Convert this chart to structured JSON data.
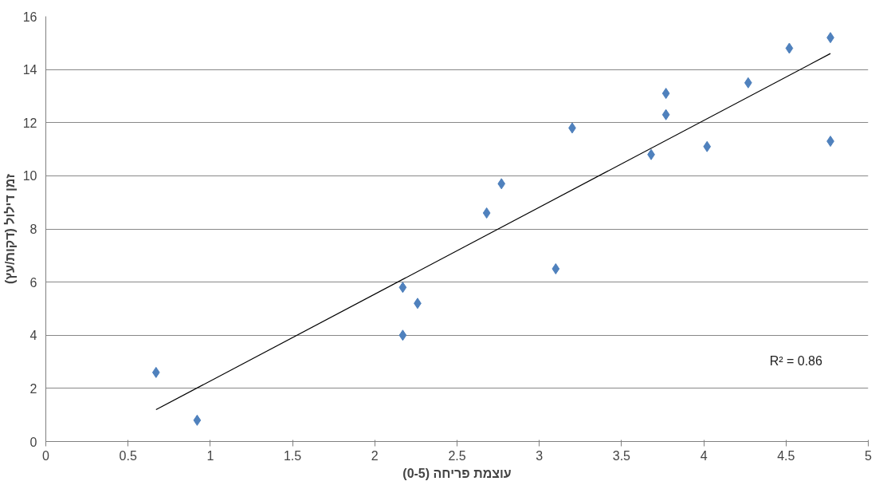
{
  "chart_data": {
    "type": "scatter",
    "xlabel": "עוצמת פריחה (0-5)",
    "ylabel": "זמן דילול (דקות/עץ)",
    "series": [
      {
        "color": "#4f81bd",
        "marker": "diamond",
        "x": [
          0.67,
          0.92,
          2.17,
          2.26,
          2.17,
          2.68,
          2.77,
          3.1,
          3.2,
          3.68,
          3.77,
          3.77,
          4.02,
          4.27,
          4.52,
          4.77,
          4.77
        ],
        "values": [
          2.6,
          0.8,
          5.8,
          5.2,
          4.0,
          8.6,
          9.7,
          6.5,
          11.8,
          10.8,
          12.3,
          13.1,
          11.1,
          13.5,
          14.8,
          15.2,
          11.3
        ]
      },
      {
        "type": "line",
        "color": "#000000",
        "x": [
          0.67,
          4.77
        ],
        "values": [
          1.2,
          14.6
        ]
      }
    ],
    "annotations": [
      "R² = 0.86"
    ],
    "xlim": [
      0,
      5
    ],
    "ylim": [
      0,
      16
    ],
    "xticks": [
      0,
      0.5,
      1,
      1.5,
      2,
      2.5,
      3,
      3.5,
      4,
      4.5,
      5
    ],
    "yticks": [
      0,
      2,
      4,
      6,
      8,
      10,
      12,
      14,
      16
    ],
    "grid": "y"
  }
}
